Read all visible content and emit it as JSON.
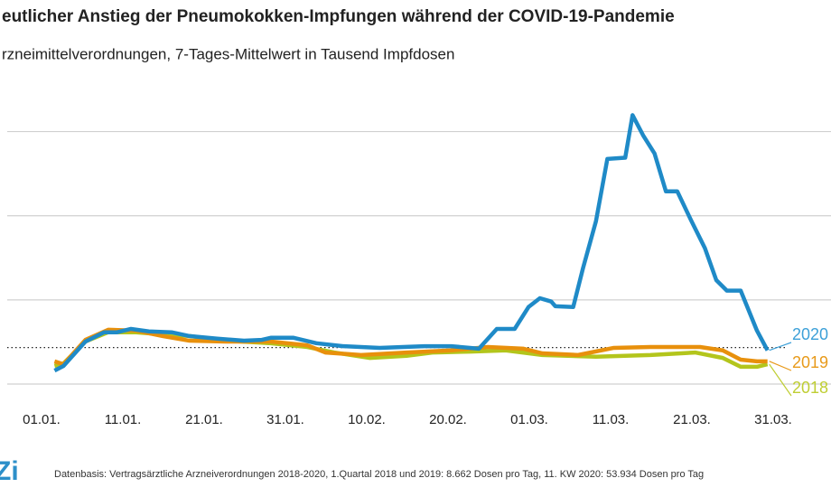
{
  "chart_data": {
    "type": "line",
    "title": "eutlicher Anstieg der Pneumokokken-Impfungen während der COVID-19-Pandemie",
    "subtitle": "rzneimittelverordnungen, 7-Tages-Mittelwert in Tausend Impfdosen",
    "xlim": [
      0,
      90
    ],
    "xticks": [
      {
        "value": 0,
        "label": "01.01."
      },
      {
        "value": 10,
        "label": "11.01."
      },
      {
        "value": 20,
        "label": "21.01."
      },
      {
        "value": 30,
        "label": "31.01."
      },
      {
        "value": 40,
        "label": "10.02."
      },
      {
        "value": 50,
        "label": "20.02."
      },
      {
        "value": 60,
        "label": "01.03."
      },
      {
        "value": 70,
        "label": "11.03."
      },
      {
        "value": 80,
        "label": "21.03."
      },
      {
        "value": 90,
        "label": "31.03."
      }
    ],
    "ylim": [
      0,
      70
    ],
    "gridlines": [
      0,
      20,
      40,
      60
    ],
    "reference": 8.662,
    "series": [
      {
        "name": "2020",
        "color": "#1f8ac7",
        "x": [
          1.6,
          2.7,
          5.4,
          7.7,
          9.3,
          11,
          13.2,
          16,
          18.2,
          21.6,
          24.9,
          27.1,
          28.2,
          31,
          33.8,
          37.1,
          41.6,
          47.1,
          50.4,
          53.8,
          56,
          58.2,
          59.9,
          61.3,
          62.7,
          63.2,
          65.4,
          66.6,
          68.2,
          69.6,
          71.8,
          72.7,
          74,
          75.4,
          76.8,
          78.2,
          79.9,
          81.6,
          83,
          84.3,
          86,
          88,
          89.3
        ],
        "values": [
          3.2,
          4.3,
          10.1,
          12.3,
          12.3,
          13.1,
          12.5,
          12.3,
          11.4,
          10.8,
          10.3,
          10.5,
          11.0,
          11.0,
          9.7,
          9.0,
          8.6,
          9.0,
          9.0,
          8.4,
          13.1,
          13.1,
          18.3,
          20.4,
          19.6,
          18.5,
          18.3,
          27.5,
          38.7,
          53.5,
          53.8,
          63.9,
          59.1,
          54.8,
          45.8,
          45.8,
          38.9,
          32.3,
          24.7,
          22.2,
          22.2,
          12.7,
          8.0
        ]
      },
      {
        "name": "2019",
        "color": "#e8900c",
        "x": [
          1.6,
          2.7,
          5.4,
          8.2,
          11.6,
          14.9,
          18.2,
          22.7,
          28.2,
          32.7,
          34.9,
          39.3,
          44.9,
          50.4,
          54.9,
          59.3,
          61.6,
          66,
          70.4,
          74.9,
          81,
          83.8,
          86,
          88,
          89.3
        ],
        "values": [
          5.4,
          4.7,
          10.5,
          12.9,
          12.7,
          11.4,
          10.3,
          10.1,
          10.1,
          9.2,
          7.5,
          6.9,
          7.5,
          8.0,
          8.8,
          8.4,
          7.3,
          6.9,
          8.6,
          8.8,
          8.8,
          8.0,
          5.8,
          5.4,
          5.4
        ]
      },
      {
        "name": "2018",
        "color": "#b3c51c",
        "x": [
          1.6,
          2.7,
          5.4,
          8.2,
          11.6,
          14.9,
          18.2,
          22.7,
          28.2,
          32.7,
          36,
          40.4,
          44.9,
          48.2,
          52.7,
          57.1,
          61.6,
          68.2,
          74.9,
          80.4,
          83.8,
          86,
          88,
          89.3
        ],
        "values": [
          4.3,
          4.9,
          10.1,
          12.3,
          12.3,
          11.8,
          11.4,
          10.3,
          9.7,
          8.8,
          7.5,
          6.2,
          6.7,
          7.5,
          7.7,
          8.0,
          6.9,
          6.5,
          6.9,
          7.5,
          6.2,
          4.1,
          4.1,
          4.7
        ]
      }
    ],
    "footnote": "Datenbasis: Vertragsärztliche Arzneiverordnungen 2018-2020, 1.Quartal 2018 und 2019: 8.662 Dosen pro Tag, 11. KW 2020: 53.934 Dosen pro Tag",
    "logo": "Zi"
  }
}
